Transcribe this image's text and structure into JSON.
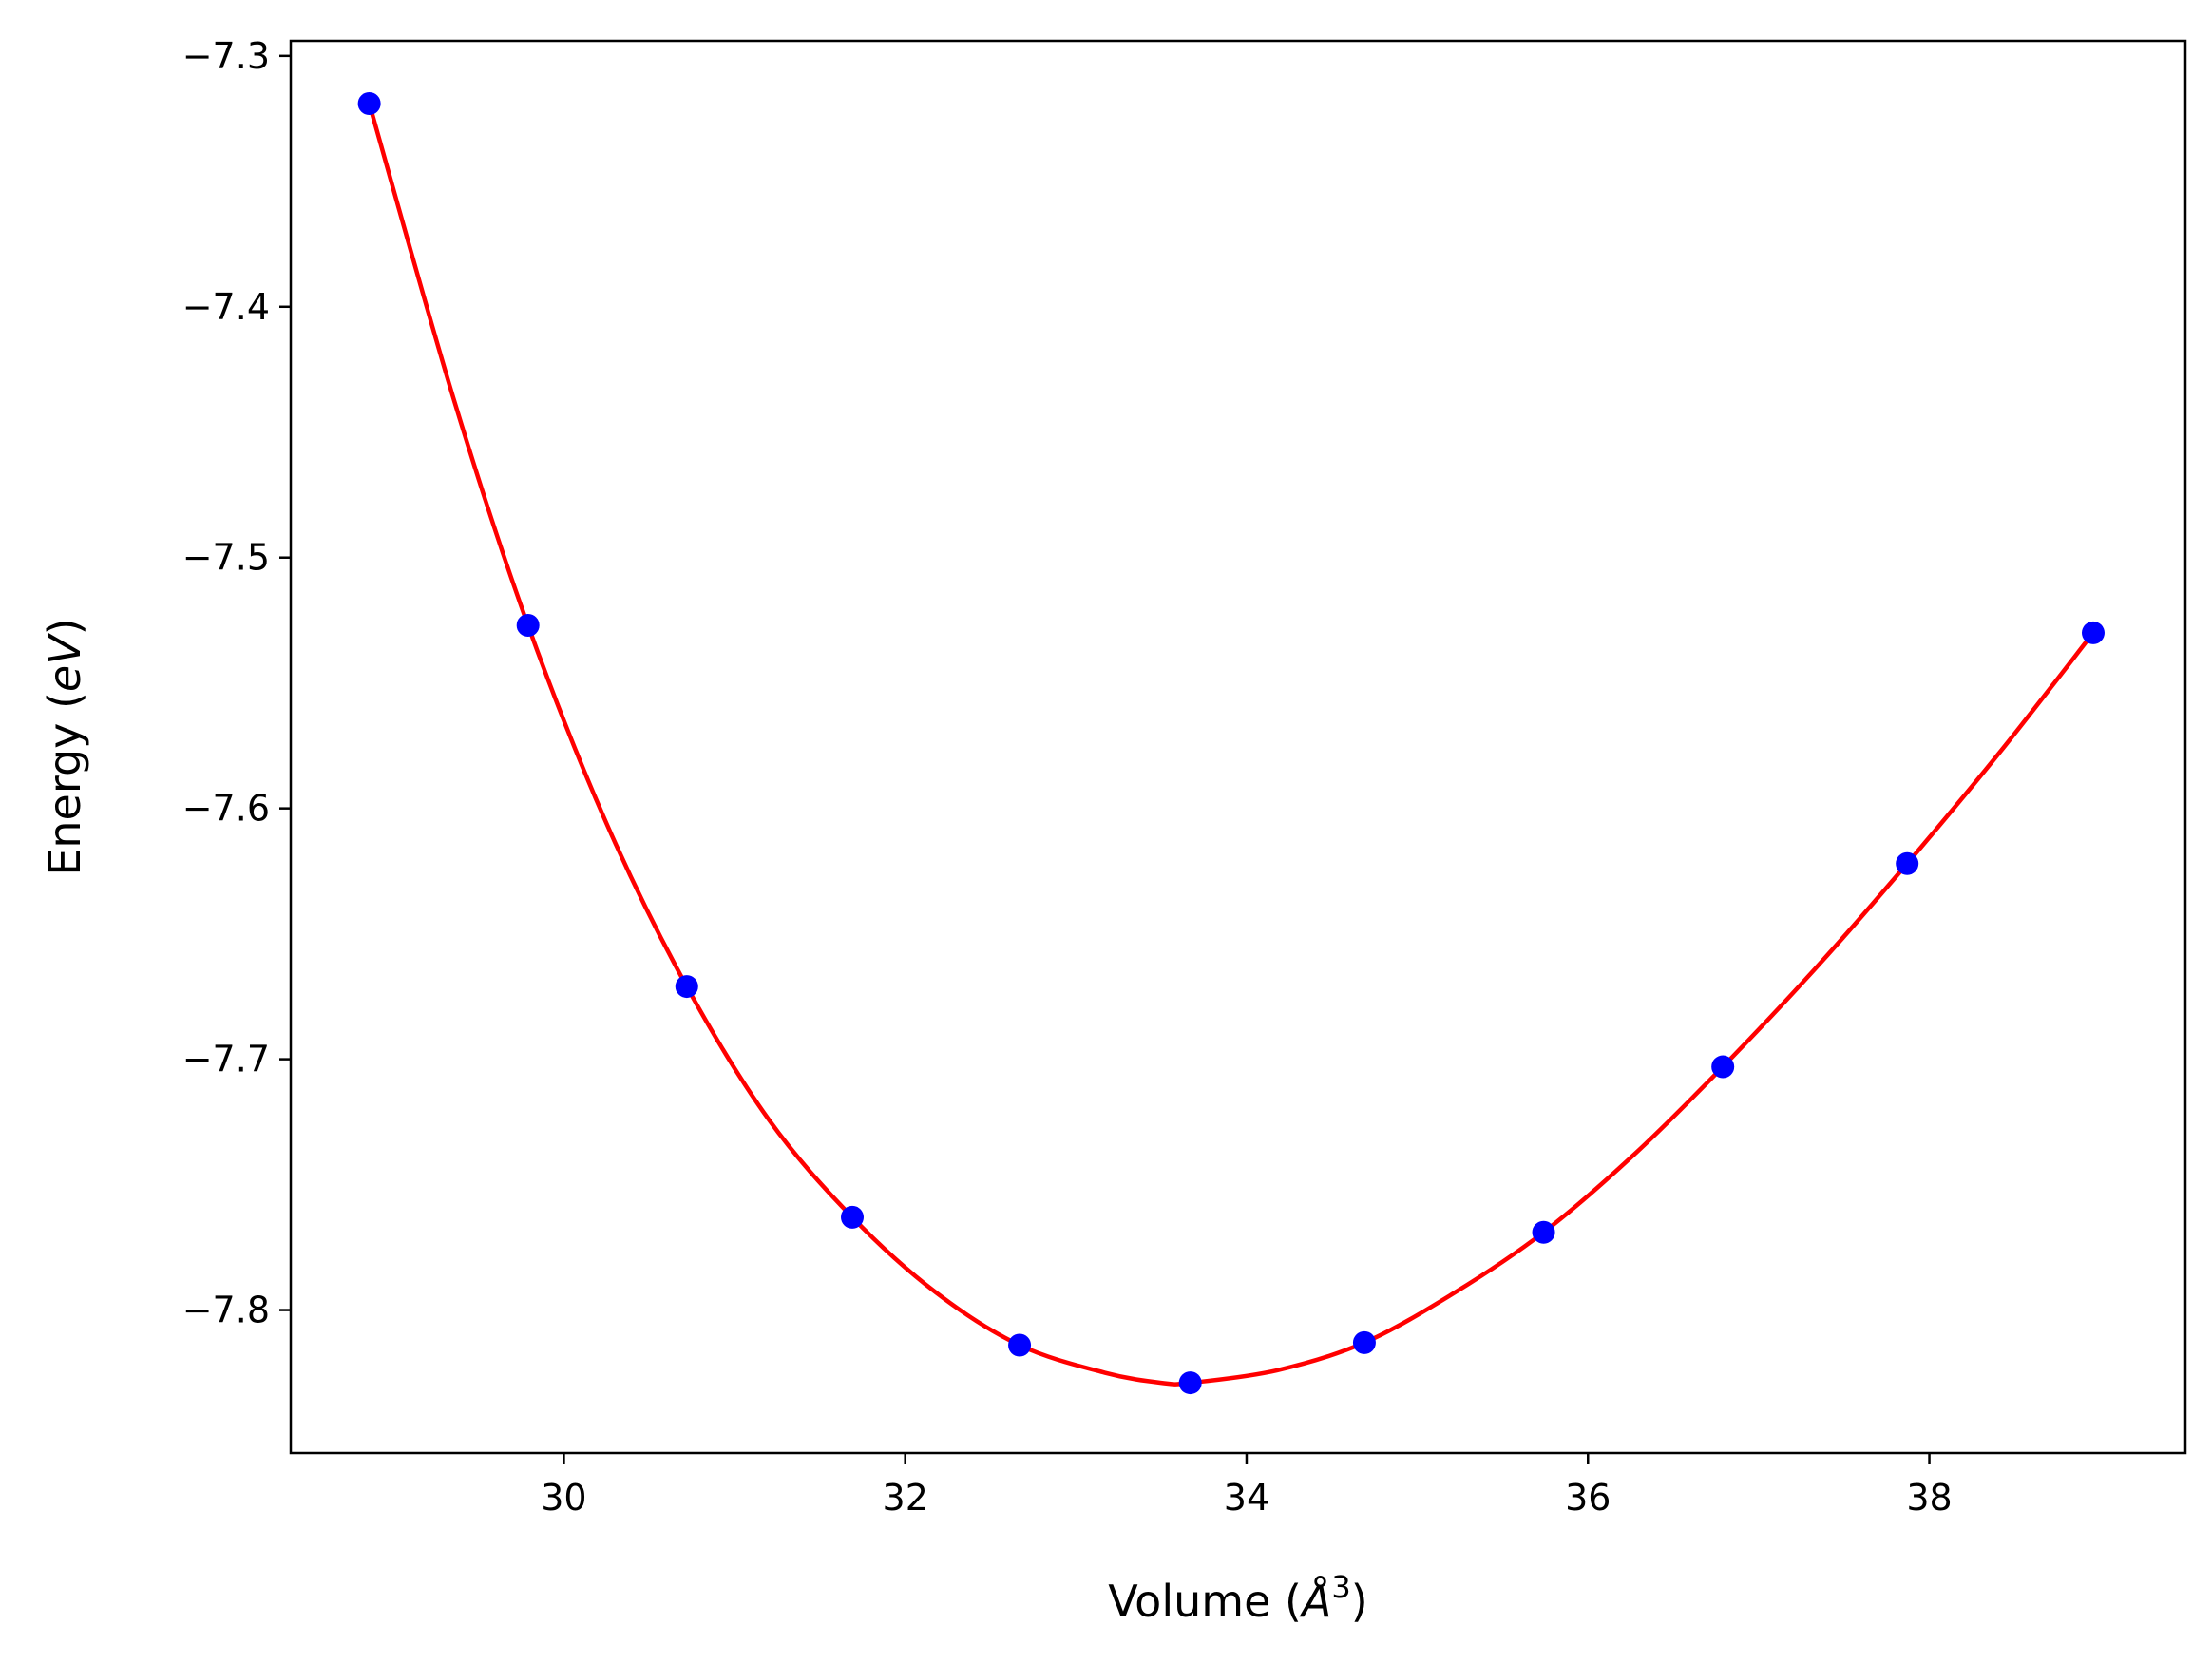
{
  "chart_data": {
    "type": "scatter",
    "title": "",
    "xlabel": {
      "prefix": "Volume (",
      "symbol": "Å",
      "superscript": "3",
      "suffix": ")"
    },
    "ylabel": {
      "prefix": "Energy (",
      "unit": "eV",
      "suffix": ")"
    },
    "xlim": [
      28.4,
      39.5
    ],
    "ylim": [
      -7.857,
      -7.294
    ],
    "xticks": [
      30,
      32,
      34,
      36,
      38
    ],
    "yticks": [
      -7.3,
      -7.4,
      -7.5,
      -7.6,
      -7.7,
      -7.8
    ],
    "xtick_labels": [
      "30",
      "32",
      "34",
      "36",
      "38"
    ],
    "ytick_labels": [
      "−7.3",
      "−7.4",
      "−7.5",
      "−7.6",
      "−7.7",
      "−7.8"
    ],
    "grid": false,
    "legend": "none",
    "series": [
      {
        "kind": "points",
        "color": "#0000ff",
        "x": [
          28.86,
          29.79,
          30.72,
          31.69,
          32.67,
          33.67,
          34.69,
          35.74,
          36.79,
          37.87,
          38.96
        ],
        "y": [
          -7.319,
          -7.527,
          -7.671,
          -7.763,
          -7.814,
          -7.829,
          -7.813,
          -7.769,
          -7.703,
          -7.622,
          -7.53
        ]
      },
      {
        "kind": "fit-curve",
        "color": "#ff0000",
        "x": [
          28.86,
          29.36,
          29.79,
          30.25,
          30.72,
          31.2,
          31.69,
          32.18,
          32.67,
          33.17,
          33.5,
          33.67,
          34.18,
          34.69,
          35.22,
          35.74,
          36.27,
          36.79,
          37.33,
          37.87,
          38.42,
          38.96
        ],
        "y": [
          -7.319,
          -7.438,
          -7.527,
          -7.606,
          -7.671,
          -7.724,
          -7.763,
          -7.793,
          -7.814,
          -7.825,
          -7.829,
          -7.829,
          -7.824,
          -7.813,
          -7.793,
          -7.769,
          -7.738,
          -7.703,
          -7.664,
          -7.622,
          -7.577,
          -7.53
        ]
      }
    ]
  }
}
